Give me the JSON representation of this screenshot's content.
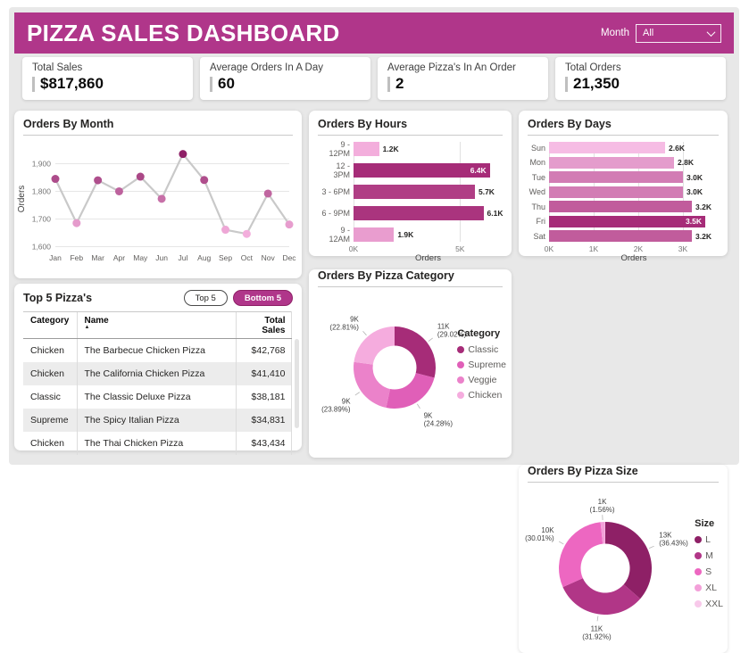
{
  "header": {
    "title": "PIZZA SALES DASHBOARD",
    "month_filter_label": "Month",
    "month_filter_value": "All"
  },
  "colors": {
    "accent": "#B0368A",
    "dark_magenta": "#A62C78",
    "light_pink": "#F3AEDC"
  },
  "kpis": [
    {
      "label": "Total Sales",
      "value": "$817,860"
    },
    {
      "label": "Average Orders In A Day",
      "value": "60"
    },
    {
      "label": "Average Pizza's In An Order",
      "value": "2"
    },
    {
      "label": "Total Orders",
      "value": "21,350"
    }
  ],
  "chart_data": [
    {
      "id": "orders_by_month",
      "type": "line",
      "title": "Orders By Month",
      "ylabel": "Orders",
      "categories": [
        "Jan",
        "Feb",
        "Mar",
        "Apr",
        "May",
        "Jun",
        "Jul",
        "Aug",
        "Sep",
        "Oct",
        "Nov",
        "Dec"
      ],
      "values": [
        1845,
        1685,
        1840,
        1800,
        1853,
        1773,
        1935,
        1841,
        1661,
        1646,
        1792,
        1680
      ],
      "yticks": [
        1600,
        1700,
        1800,
        1900
      ],
      "ylim": [
        1595,
        1950
      ],
      "grid": true,
      "line_color": "#C9C9C9",
      "point_color_scale": {
        "min": "#F3AEDC",
        "max": "#8E2066"
      }
    },
    {
      "id": "orders_by_hours",
      "type": "bar",
      "orientation": "horizontal",
      "title": "Orders By Hours",
      "xlabel": "Orders",
      "categories": [
        "9 - 12PM",
        "12 - 3PM",
        "3 - 6PM",
        "6 - 9PM",
        "9 - 12AM"
      ],
      "values": [
        1.2,
        6.4,
        5.7,
        6.1,
        1.9
      ],
      "value_labels": [
        "1.2K",
        "6.4K",
        "5.7K",
        "6.1K",
        "1.9K"
      ],
      "xticks": [
        "0K",
        "5K"
      ],
      "xtick_values": [
        0,
        5
      ],
      "xmax": 7.0,
      "bar_color_scale": {
        "min": "#F3AEDC",
        "max": "#A62C78"
      }
    },
    {
      "id": "orders_by_days",
      "type": "bar",
      "orientation": "horizontal",
      "title": "Orders By Days",
      "xlabel": "Orders",
      "categories": [
        "Sun",
        "Mon",
        "Tue",
        "Wed",
        "Thu",
        "Fri",
        "Sat"
      ],
      "values": [
        2.6,
        2.8,
        3.0,
        3.0,
        3.2,
        3.5,
        3.2
      ],
      "value_labels": [
        "2.6K",
        "2.8K",
        "3.0K",
        "3.0K",
        "3.2K",
        "3.5K",
        "3.2K"
      ],
      "xticks": [
        "0K",
        "1K",
        "2K",
        "3K"
      ],
      "xtick_values": [
        0,
        1,
        2,
        3
      ],
      "xmax": 3.8,
      "bar_color_scale": {
        "min": "#F6BCE4",
        "max": "#A62C78"
      }
    },
    {
      "id": "orders_by_pizza_category",
      "type": "donut",
      "title": "Orders By Pizza Category",
      "legend_title": "Category",
      "legend_position": "right",
      "slices": [
        {
          "name": "Classic",
          "value": "11K",
          "pct": "(29.02%)",
          "pct_num": 29.02,
          "color": "#A62C78"
        },
        {
          "name": "Supreme",
          "value": "9K",
          "pct": "(24.28%)",
          "pct_num": 24.28,
          "color": "#E05FB8"
        },
        {
          "name": "Veggie",
          "value": "9K",
          "pct": "(23.89%)",
          "pct_num": 23.89,
          "color": "#EB82CA"
        },
        {
          "name": "Chicken",
          "value": "9K",
          "pct": "(22.81%)",
          "pct_num": 22.81,
          "color": "#F5ACDE"
        }
      ]
    },
    {
      "id": "orders_by_pizza_size",
      "type": "donut",
      "title": "Orders By Pizza Size",
      "legend_title": "Size",
      "legend_position": "right",
      "slices": [
        {
          "name": "L",
          "value": "13K",
          "pct": "(36.43%)",
          "pct_num": 36.43,
          "color": "#8E2066"
        },
        {
          "name": "M",
          "value": "11K",
          "pct": "(31.92%)",
          "pct_num": 31.92,
          "color": "#B13687"
        },
        {
          "name": "S",
          "value": "10K",
          "pct": "(30.01%)",
          "pct_num": 30.01,
          "color": "#ED67C1"
        },
        {
          "name": "XL",
          "value": "1K",
          "pct": "(1.56%)",
          "pct_num": 1.56,
          "color": "#F3A0D9"
        },
        {
          "name": "XXL",
          "value": "",
          "pct": "",
          "pct_num": 0.08,
          "color": "#F8C9EA",
          "no_label": true
        }
      ]
    }
  ],
  "table": {
    "title": "Top 5 Pizza's",
    "buttons": [
      {
        "label": "Top 5",
        "active": false
      },
      {
        "label": "Bottom 5",
        "active": true
      }
    ],
    "columns": [
      "Category",
      "Name",
      "Total Sales"
    ],
    "sort_column": "Name",
    "rows": [
      [
        "Chicken",
        "The Barbecue Chicken Pizza",
        "$42,768"
      ],
      [
        "Chicken",
        "The California Chicken Pizza",
        "$41,410"
      ],
      [
        "Classic",
        "The Classic Deluxe Pizza",
        "$38,181"
      ],
      [
        "Supreme",
        "The Spicy Italian Pizza",
        "$34,831"
      ],
      [
        "Chicken",
        "The Thai Chicken Pizza",
        "$43,434"
      ]
    ]
  }
}
